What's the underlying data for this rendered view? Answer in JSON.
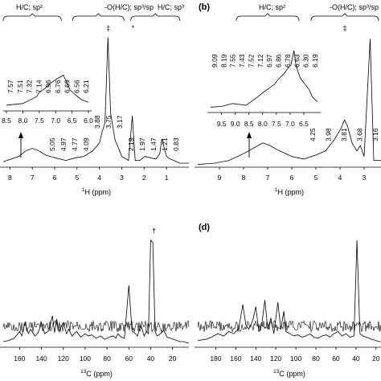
{
  "panels": [
    {
      "id": "a",
      "letter": "",
      "type": "line",
      "axis_label": "1H (ppm)",
      "axis_base": "1",
      "axis_sup": "H",
      "axis_rest": " (ppm)",
      "xlim": [
        8.3,
        0.0
      ],
      "ticks": [
        "8",
        "7",
        "6",
        "5",
        "4",
        "3",
        "2",
        "1"
      ],
      "ylim": [
        0,
        1
      ],
      "region_labels": [
        "H/C; sp²",
        "-O(H/C); sp³/sp",
        "H/C; sp³"
      ],
      "region_ranges": [
        [
          8.3,
          5.7
        ],
        [
          5.2,
          2.9
        ],
        [
          2.6,
          0.4
        ]
      ],
      "symbols": [
        {
          "text": "‡",
          "x": 3.6
        },
        {
          "text": "*",
          "x": 2.5
        }
      ],
      "series": [
        {
          "name": "main",
          "x": [
            8.3,
            7.6,
            7.3,
            7.0,
            6.7,
            6.4,
            6.0,
            5.5,
            5.05,
            4.7,
            4.3,
            4.0,
            3.88,
            3.75,
            3.62,
            3.5,
            3.3,
            3.17,
            3.0,
            2.7,
            2.53,
            2.4,
            2.19,
            1.97,
            1.47,
            1.3,
            1.21,
            1.0,
            0.83,
            0.4,
            0.0
          ],
          "y": [
            0.04,
            0.08,
            0.12,
            0.14,
            0.12,
            0.09,
            0.07,
            0.05,
            0.07,
            0.08,
            0.12,
            0.18,
            0.26,
            0.33,
            0.96,
            0.4,
            0.2,
            0.15,
            0.08,
            0.05,
            0.38,
            0.05,
            0.05,
            0.08,
            0.06,
            0.1,
            0.21,
            0.08,
            0.06,
            0.03,
            0.03
          ]
        }
      ],
      "peak_labels": [
        "5.05",
        "4.97",
        "4.77",
        "4.09",
        "3.88",
        "3.75",
        "3.17",
        "2.19",
        "1.97",
        "1.47",
        "1.21",
        "0.83"
      ],
      "inset": {
        "xlim": [
          8.5,
          6.0
        ],
        "ticks": [
          "8.5",
          "8.0",
          "7.5",
          "7.0",
          "6.5",
          "6.0"
        ],
        "x": [
          8.5,
          8.0,
          7.8,
          7.57,
          7.51,
          7.32,
          7.14,
          6.96,
          6.76,
          6.69,
          6.56,
          6.4,
          6.21,
          6.0
        ],
        "y": [
          0.03,
          0.08,
          0.18,
          0.3,
          0.42,
          0.55,
          0.72,
          0.85,
          0.96,
          0.8,
          0.5,
          0.35,
          0.2,
          0.12
        ],
        "peak_labels": [
          "7.57",
          "7.51",
          "7.32",
          "7.14",
          "6.96",
          "6.76",
          "6.69",
          "6.56",
          "6.21"
        ]
      }
    },
    {
      "id": "b",
      "letter": "(b)",
      "type": "line",
      "axis_label": "1H (ppm)",
      "axis_base": "1",
      "axis_sup": "H",
      "axis_rest": " (ppm)",
      "xlim": [
        9.9,
        2.3
      ],
      "ticks": [
        "9",
        "8",
        "7",
        "6",
        "5",
        "4",
        "3"
      ],
      "ylim": [
        0,
        1
      ],
      "region_labels": [
        "H/C; sp²",
        "-O(H/C); sp³/sp"
      ],
      "region_ranges": [
        [
          8.3,
          5.7
        ],
        [
          5.2,
          2.4
        ]
      ],
      "symbols": [
        {
          "text": "‡",
          "x": 3.8
        }
      ],
      "series": [
        {
          "name": "main",
          "x": [
            9.9,
            9.2,
            8.6,
            8.0,
            7.6,
            7.2,
            6.9,
            6.5,
            6.0,
            5.5,
            5.0,
            4.6,
            4.25,
            3.98,
            3.81,
            3.68,
            3.5,
            3.3,
            3.16,
            3.0,
            2.75,
            2.6,
            2.3
          ],
          "y": [
            0.02,
            0.03,
            0.05,
            0.1,
            0.14,
            0.18,
            0.16,
            0.12,
            0.08,
            0.06,
            0.09,
            0.12,
            0.2,
            0.28,
            0.35,
            0.3,
            0.18,
            0.12,
            0.16,
            0.08,
            0.95,
            0.05,
            0.05
          ]
        }
      ],
      "peak_labels": [
        "4.25",
        "3.98",
        "3.81",
        "3.68",
        "3.16"
      ],
      "inset": {
        "xlim": [
          9.9,
          6.0
        ],
        "ticks": [
          "9.5",
          "9.0",
          "8.5",
          "8.0",
          "7.5",
          "7.0",
          "6.5"
        ],
        "x": [
          9.9,
          9.5,
          9.09,
          8.6,
          8.19,
          8.0,
          7.55,
          7.43,
          7.2,
          7.12,
          6.97,
          6.86,
          6.78,
          6.63,
          6.3,
          6.19,
          6.0
        ],
        "y": [
          0.01,
          0.02,
          0.07,
          0.04,
          0.18,
          0.25,
          0.4,
          0.48,
          0.58,
          0.64,
          0.72,
          0.96,
          0.7,
          0.5,
          0.3,
          0.18,
          0.1
        ],
        "peak_labels": [
          "9.09",
          "8.19",
          "7.55",
          "7.43",
          "7.52",
          "7.12",
          "6.97",
          "6.86",
          "6.78",
          "6.63",
          "6.30",
          "6.19"
        ]
      }
    },
    {
      "id": "c",
      "letter": "",
      "type": "line",
      "axis_label": "13C (ppm)",
      "axis_base": "13",
      "axis_sup": "C",
      "axis_rest": " (ppm)",
      "xlim": [
        175,
        5
      ],
      "ticks": [
        "160",
        "140",
        "120",
        "100",
        "80",
        "60",
        "40",
        "20"
      ],
      "ylim": [
        0,
        1
      ],
      "symbols": [
        {
          "text": "†",
          "x": 37
        }
      ],
      "series": [
        {
          "name": "main",
          "x": [
            175,
            170,
            165,
            160,
            158,
            155,
            152,
            150,
            146,
            143,
            140,
            137,
            133,
            130,
            128,
            126,
            124,
            120,
            117,
            115,
            112,
            108,
            104,
            100,
            97,
            94,
            90,
            86,
            82,
            78,
            74,
            72,
            70,
            67,
            64,
            60,
            57,
            55,
            52,
            49,
            46,
            44,
            42,
            40,
            38,
            36,
            34,
            31,
            28,
            25,
            22,
            19,
            16,
            13,
            10,
            7,
            5
          ],
          "y": [
            0.05,
            0.06,
            0.08,
            0.14,
            0.1,
            0.22,
            0.12,
            0.16,
            0.1,
            0.13,
            0.22,
            0.12,
            0.15,
            0.28,
            0.13,
            0.25,
            0.14,
            0.22,
            0.12,
            0.16,
            0.1,
            0.14,
            0.09,
            0.12,
            0.1,
            0.11,
            0.08,
            0.1,
            0.07,
            0.09,
            0.1,
            0.08,
            0.12,
            0.09,
            0.08,
            0.55,
            0.14,
            0.13,
            0.1,
            0.2,
            0.1,
            0.14,
            0.12,
            0.95,
            0.93,
            0.14,
            0.1,
            0.12,
            0.15,
            0.09,
            0.08,
            0.07,
            0.06,
            0.05,
            0.05,
            0.04,
            0.04
          ]
        }
      ]
    },
    {
      "id": "d",
      "letter": "(d)",
      "type": "line",
      "axis_label": "13C (ppm)",
      "axis_base": "13",
      "axis_sup": "C",
      "axis_rest": " (ppm)",
      "xlim": [
        198,
        15
      ],
      "ticks": [
        "180",
        "160",
        "140",
        "120",
        "100",
        "80",
        "60",
        "40",
        "20"
      ],
      "ylim": [
        0,
        1
      ],
      "symbols": [],
      "series": [
        {
          "name": "main",
          "x": [
            198,
            190,
            184,
            178,
            172,
            167,
            162,
            157,
            153,
            150,
            147,
            143,
            140,
            137,
            134,
            131,
            128,
            125,
            122,
            118,
            115,
            112,
            110,
            106,
            102,
            98,
            94,
            90,
            86,
            82,
            78,
            74,
            70,
            66,
            62,
            58,
            54,
            50,
            46,
            42,
            39,
            36,
            33,
            30,
            27,
            24,
            20,
            17,
            15
          ],
          "y": [
            0.06,
            0.07,
            0.09,
            0.12,
            0.1,
            0.14,
            0.12,
            0.17,
            0.38,
            0.2,
            0.16,
            0.24,
            0.36,
            0.14,
            0.2,
            0.42,
            0.16,
            0.26,
            0.12,
            0.4,
            0.16,
            0.32,
            0.14,
            0.12,
            0.1,
            0.11,
            0.09,
            0.1,
            0.12,
            0.09,
            0.08,
            0.1,
            0.11,
            0.09,
            0.12,
            0.14,
            0.1,
            0.12,
            0.09,
            0.1,
            0.95,
            0.12,
            0.1,
            0.09,
            0.08,
            0.07,
            0.06,
            0.05,
            0.05
          ]
        }
      ]
    }
  ]
}
